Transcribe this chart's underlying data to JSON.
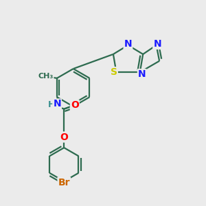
{
  "background_color": "#ebebeb",
  "bond_color": "#2d6b4f",
  "bond_width": 1.6,
  "atom_colors": {
    "N": "#1a1aff",
    "O": "#ff0000",
    "S": "#cccc00",
    "Br": "#cc6600",
    "H": "#3a9090",
    "C": "#2d6b4f"
  },
  "figsize": [
    3.0,
    3.0
  ],
  "dpi": 100
}
